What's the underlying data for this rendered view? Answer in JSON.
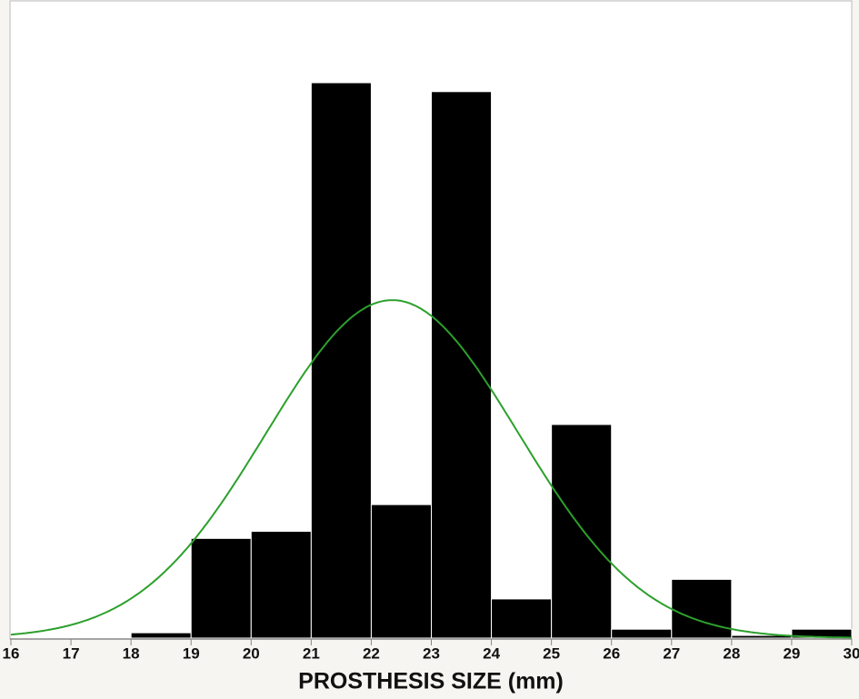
{
  "chart_data": {
    "type": "histogram",
    "x_label": "PROSTHESIS SIZE (mm)",
    "bins": [
      18,
      19,
      20,
      21,
      22,
      23,
      24,
      25,
      26,
      27,
      28,
      29,
      30
    ],
    "values": [
      0.3,
      5.6,
      6.0,
      31.2,
      7.5,
      30.7,
      2.2,
      12.0,
      0.5,
      3.3,
      0.15,
      0.5
    ],
    "color": "#000000",
    "xlim": [
      16,
      30
    ],
    "xticks": [
      16,
      17,
      18,
      19,
      20,
      21,
      22,
      23,
      24,
      25,
      26,
      27,
      28,
      29,
      30
    ],
    "fit": {
      "type": "normal",
      "mean": 22.35,
      "sd": 2.1,
      "color": "#2ca02c"
    }
  }
}
